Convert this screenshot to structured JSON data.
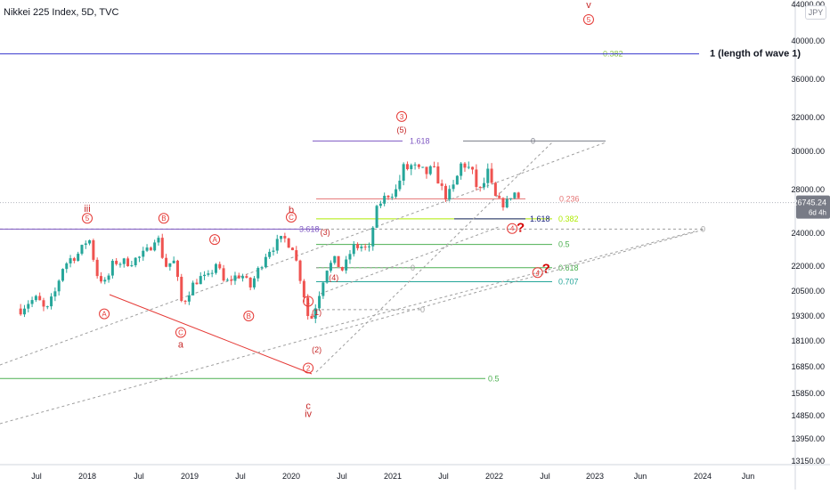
{
  "header": {
    "title": "Nikkei 225 Index, 5D, TVC"
  },
  "currency": "JPY",
  "last_price": {
    "value": "26745.24",
    "countdown": "6d 4h"
  },
  "chart_data": {
    "type": "candlestick",
    "title": "Nikkei 225 Index, 5D, TVC",
    "x_ticks": [
      "Jul",
      "2018",
      "Jul",
      "2019",
      "Jul",
      "2020",
      "Jul",
      "2021",
      "Jul",
      "2022",
      "Jul",
      "2023",
      "Jun",
      "2024",
      "Jun"
    ],
    "y_ticks": [
      "44000.00",
      "40000.00",
      "36000.00",
      "32000.00",
      "30000.00",
      "28000.00",
      "24000.00",
      "22000.00",
      "20500.00",
      "19300.00",
      "18100.00",
      "16850.00",
      "15850.00",
      "14850.00",
      "13950.00",
      "13150.00"
    ],
    "y_range": [
      13150,
      44000
    ],
    "y_scale": "log",
    "series": [
      {
        "name": "Nikkei 225",
        "points": [
          [
            "2017-05",
            19650
          ],
          [
            "2017-06",
            20000
          ],
          [
            "2017-07",
            20100
          ],
          [
            "2017-08",
            19450
          ],
          [
            "2017-09",
            20350
          ],
          [
            "2017-10",
            22000
          ],
          [
            "2017-11",
            22500
          ],
          [
            "2017-12",
            22800
          ],
          [
            "2018-01",
            23800
          ],
          [
            "2018-02",
            21500
          ],
          [
            "2018-03",
            20900
          ],
          [
            "2018-04",
            22300
          ],
          [
            "2018-05",
            22200
          ],
          [
            "2018-06",
            22300
          ],
          [
            "2018-07",
            22500
          ],
          [
            "2018-08",
            22900
          ],
          [
            "2018-09",
            24000
          ],
          [
            "2018-10",
            22000
          ],
          [
            "2018-11",
            22300
          ],
          [
            "2018-12",
            19800
          ],
          [
            "2019-01",
            20700
          ],
          [
            "2019-02",
            21300
          ],
          [
            "2019-03",
            21200
          ],
          [
            "2019-04",
            22200
          ],
          [
            "2019-05",
            20900
          ],
          [
            "2019-06",
            21300
          ],
          [
            "2019-07",
            21500
          ],
          [
            "2019-08",
            20700
          ],
          [
            "2019-09",
            21800
          ],
          [
            "2019-10",
            22900
          ],
          [
            "2019-11",
            23300
          ],
          [
            "2019-12",
            23650
          ],
          [
            "2020-01",
            23200
          ],
          [
            "2020-02",
            21100
          ],
          [
            "2020-03",
            18900
          ],
          [
            "2020-04",
            20200
          ],
          [
            "2020-05",
            21900
          ],
          [
            "2020-06",
            22300
          ],
          [
            "2020-07",
            21700
          ],
          [
            "2020-08",
            23100
          ],
          [
            "2020-09",
            23200
          ],
          [
            "2020-10",
            22900
          ],
          [
            "2020-11",
            26400
          ],
          [
            "2020-12",
            27400
          ],
          [
            "2021-01",
            27700
          ],
          [
            "2021-02",
            29000
          ],
          [
            "2021-03",
            29200
          ],
          [
            "2021-04",
            28800
          ],
          [
            "2021-05",
            28900
          ],
          [
            "2021-06",
            28800
          ],
          [
            "2021-07",
            27300
          ],
          [
            "2021-08",
            28100
          ],
          [
            "2021-09",
            29500
          ],
          [
            "2021-10",
            28900
          ],
          [
            "2021-11",
            27800
          ],
          [
            "2021-12",
            28800
          ],
          [
            "2022-01",
            27000
          ],
          [
            "2022-02",
            26500
          ],
          [
            "2022-03",
            27800
          ],
          [
            "2022-04",
            26745
          ]
        ]
      }
    ],
    "fib_levels": [
      {
        "label": "0.382",
        "value": 38600,
        "color": "#8bc34a"
      },
      {
        "label": "1 (length of wave 1)",
        "value": 38600,
        "color": "#3f3fd0"
      },
      {
        "label": "1.618",
        "value": 30600,
        "color": "#7e57c2"
      },
      {
        "label": "0",
        "value": 30600,
        "color": "#787b86"
      },
      {
        "label": "0.236",
        "value": 27100,
        "color": "#e57373"
      },
      {
        "label": "0.382",
        "value": 25250,
        "color": "#aeea00"
      },
      {
        "label": "1.618",
        "value": 25250,
        "color": "#1a237e"
      },
      {
        "label": "0",
        "value": 24350,
        "color": "#9e9e9e"
      },
      {
        "label": "3.618",
        "value": 24350,
        "color": "#7e57c2"
      },
      {
        "label": "0.5",
        "value": 23300,
        "color": "#4caf50"
      },
      {
        "label": "0.618",
        "value": 21900,
        "color": "#4caf50"
      },
      {
        "label": "0.707",
        "value": 21050,
        "color": "#26a69a"
      },
      {
        "label": "0",
        "value": 21900,
        "color": "#9e9e9e"
      },
      {
        "label": "0",
        "value": 19600,
        "color": "#9e9e9e"
      },
      {
        "label": "0.5",
        "value": 16400,
        "color": "#4caf50"
      }
    ],
    "wave_labels": [
      {
        "label": "iii",
        "date": "2018-01",
        "value": 26200
      },
      {
        "label": "5",
        "date": "2018-01",
        "value": 25300,
        "circled": true
      },
      {
        "label": "A",
        "date": "2018-03",
        "value": 19400,
        "circled": true
      },
      {
        "label": "B",
        "date": "2018-10",
        "value": 25300,
        "circled": true
      },
      {
        "label": "A",
        "date": "2019-04",
        "value": 23600,
        "circled": true
      },
      {
        "label": "C",
        "date": "2018-12",
        "value": 18500,
        "circled": true
      },
      {
        "label": "a",
        "date": "2018-12",
        "value": 17950
      },
      {
        "label": "B",
        "date": "2019-08",
        "value": 19300,
        "circled": true
      },
      {
        "label": "b",
        "date": "2020-01",
        "value": 26100
      },
      {
        "label": "C",
        "date": "2020-01",
        "value": 25400,
        "circled": true
      },
      {
        "label": "c",
        "date": "2020-03",
        "value": 15300
      },
      {
        "label": "iv",
        "date": "2020-03",
        "value": 14950
      },
      {
        "label": "1",
        "date": "2020-03",
        "value": 20000,
        "circled": true
      },
      {
        "label": "2",
        "date": "2020-03",
        "value": 16800,
        "circled": true
      },
      {
        "label": "(1)",
        "date": "2020-04",
        "value": 19500
      },
      {
        "label": "(2)",
        "date": "2020-04",
        "value": 17700
      },
      {
        "label": "(3)",
        "date": "2020-05",
        "value": 24150
      },
      {
        "label": "(4)",
        "date": "2020-06",
        "value": 21350
      },
      {
        "label": "3",
        "date": "2021-02",
        "value": 32100,
        "circled": true
      },
      {
        "label": "(5)",
        "date": "2021-02",
        "value": 31300
      },
      {
        "label": "4",
        "date": "2022-03",
        "value": 24400,
        "circled": true
      },
      {
        "label": "?",
        "date": "2022-04",
        "value": 24400
      },
      {
        "label": "4",
        "date": "2022-06",
        "value": 21600,
        "circled": true
      },
      {
        "label": "?",
        "date": "2022-07",
        "value": 21800
      },
      {
        "label": "v",
        "date": "2022-12",
        "value": 44200
      },
      {
        "label": "5",
        "date": "2022-12",
        "value": 42300,
        "circled": true
      }
    ]
  }
}
